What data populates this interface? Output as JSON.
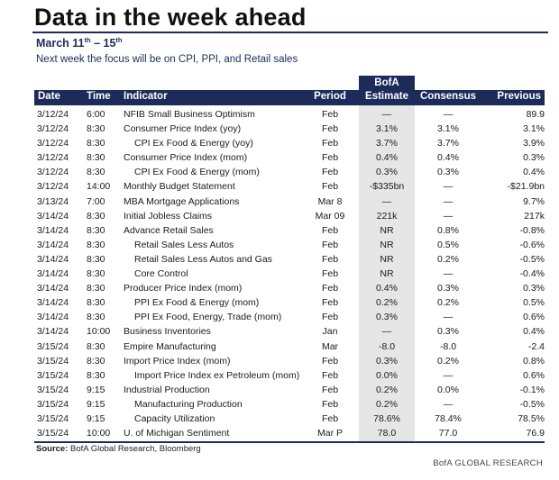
{
  "title": "Data in the week ahead",
  "date_range": {
    "main": "March 11",
    "sup1": "th",
    "mid": " – 15",
    "sup2": "th"
  },
  "subtitle": "Next week the focus will be on CPI, PPI, and Retail sales",
  "headers": {
    "date": "Date",
    "time": "Time",
    "indicator": "Indicator",
    "period": "Period",
    "bofa_top": "BofA",
    "bofa_bottom": "Estimate",
    "consensus": "Consensus",
    "previous": "Previous"
  },
  "rows": [
    {
      "date": "3/12/24",
      "time": "6:00",
      "indicator": "NFIB Small Business Optimism",
      "indent": 0,
      "period": "Feb",
      "estimate": "—",
      "consensus": "—",
      "previous": "89.9"
    },
    {
      "date": "3/12/24",
      "time": "8:30",
      "indicator": "Consumer Price Index (yoy)",
      "indent": 0,
      "period": "Feb",
      "estimate": "3.1%",
      "consensus": "3.1%",
      "previous": "3.1%"
    },
    {
      "date": "3/12/24",
      "time": "8:30",
      "indicator": "CPI Ex Food & Energy (yoy)",
      "indent": 1,
      "period": "Feb",
      "estimate": "3.7%",
      "consensus": "3.7%",
      "previous": "3.9%"
    },
    {
      "date": "3/12/24",
      "time": "8:30",
      "indicator": "Consumer Price Index (mom)",
      "indent": 0,
      "period": "Feb",
      "estimate": "0.4%",
      "consensus": "0.4%",
      "previous": "0.3%"
    },
    {
      "date": "3/12/24",
      "time": "8:30",
      "indicator": "CPI Ex Food & Energy (mom)",
      "indent": 1,
      "period": "Feb",
      "estimate": "0.3%",
      "consensus": "0.3%",
      "previous": "0.4%"
    },
    {
      "date": "3/12/24",
      "time": "14:00",
      "indicator": "Monthly Budget Statement",
      "indent": 0,
      "period": "Feb",
      "estimate": "-$335bn",
      "consensus": "—",
      "previous": "-$21.9bn"
    },
    {
      "date": "3/13/24",
      "time": "7:00",
      "indicator": "MBA Mortgage Applications",
      "indent": 0,
      "period": "Mar 8",
      "estimate": "—",
      "consensus": "—",
      "previous": "9.7%"
    },
    {
      "date": "3/14/24",
      "time": "8:30",
      "indicator": "Initial Jobless Claims",
      "indent": 0,
      "period": "Mar 09",
      "estimate": "221k",
      "consensus": "—",
      "previous": "217k"
    },
    {
      "date": "3/14/24",
      "time": "8:30",
      "indicator": "Advance Retail Sales",
      "indent": 0,
      "period": "Feb",
      "estimate": "NR",
      "consensus": "0.8%",
      "previous": "-0.8%"
    },
    {
      "date": "3/14/24",
      "time": "8:30",
      "indicator": "Retail Sales Less Autos",
      "indent": 1,
      "period": "Feb",
      "estimate": "NR",
      "consensus": "0.5%",
      "previous": "-0.6%"
    },
    {
      "date": "3/14/24",
      "time": "8:30",
      "indicator": "Retail Sales Less Autos and Gas",
      "indent": 1,
      "period": "Feb",
      "estimate": "NR",
      "consensus": "0.2%",
      "previous": "-0.5%"
    },
    {
      "date": "3/14/24",
      "time": "8:30",
      "indicator": "Core Control",
      "indent": 1,
      "period": "Feb",
      "estimate": "NR",
      "consensus": "—",
      "previous": "-0.4%"
    },
    {
      "date": "3/14/24",
      "time": "8:30",
      "indicator": "Producer Price Index (mom)",
      "indent": 0,
      "period": "Feb",
      "estimate": "0.4%",
      "consensus": "0.3%",
      "previous": "0.3%"
    },
    {
      "date": "3/14/24",
      "time": "8:30",
      "indicator": "PPI Ex Food & Energy (mom)",
      "indent": 1,
      "period": "Feb",
      "estimate": "0.2%",
      "consensus": "0.2%",
      "previous": "0.5%"
    },
    {
      "date": "3/14/24",
      "time": "8:30",
      "indicator": "PPI Ex Food, Energy, Trade (mom)",
      "indent": 1,
      "period": "Feb",
      "estimate": "0.3%",
      "consensus": "—",
      "previous": "0.6%"
    },
    {
      "date": "3/14/24",
      "time": "10:00",
      "indicator": "Business Inventories",
      "indent": 0,
      "period": "Jan",
      "estimate": "—",
      "consensus": "0.3%",
      "previous": "0.4%"
    },
    {
      "date": "3/15/24",
      "time": "8:30",
      "indicator": "Empire Manufacturing",
      "indent": 0,
      "period": "Mar",
      "estimate": "-8.0",
      "consensus": "-8.0",
      "previous": "-2.4"
    },
    {
      "date": "3/15/24",
      "time": "8:30",
      "indicator": "Import Price Index (mom)",
      "indent": 0,
      "period": "Feb",
      "estimate": "0.3%",
      "consensus": "0.2%",
      "previous": "0.8%"
    },
    {
      "date": "3/15/24",
      "time": "8:30",
      "indicator": "Import Price Index ex Petroleum (mom)",
      "indent": 1,
      "period": "Feb",
      "estimate": "0.0%",
      "consensus": "—",
      "previous": "0.6%"
    },
    {
      "date": "3/15/24",
      "time": "9:15",
      "indicator": "Industrial Production",
      "indent": 0,
      "period": "Feb",
      "estimate": "0.2%",
      "consensus": "0.0%",
      "previous": "-0.1%"
    },
    {
      "date": "3/15/24",
      "time": "9:15",
      "indicator": "Manufacturing Production",
      "indent": 1,
      "period": "Feb",
      "estimate": "0.2%",
      "consensus": "—",
      "previous": "-0.5%"
    },
    {
      "date": "3/15/24",
      "time": "9:15",
      "indicator": "Capacity Utilization",
      "indent": 1,
      "period": "Feb",
      "estimate": "78.6%",
      "consensus": "78.4%",
      "previous": "78.5%"
    },
    {
      "date": "3/15/24",
      "time": "10:00",
      "indicator": "U. of Michigan Sentiment",
      "indent": 0,
      "period": "Mar P",
      "estimate": "78.0",
      "consensus": "77.0",
      "previous": "76.9"
    }
  ],
  "source": {
    "label": "Source:",
    "text": " BofA Global Research, Bloomberg"
  },
  "credit": "BofA GLOBAL RESEARCH",
  "colors": {
    "navy": "#1c2b5a",
    "estimate_shade": "#e6e6e6"
  }
}
